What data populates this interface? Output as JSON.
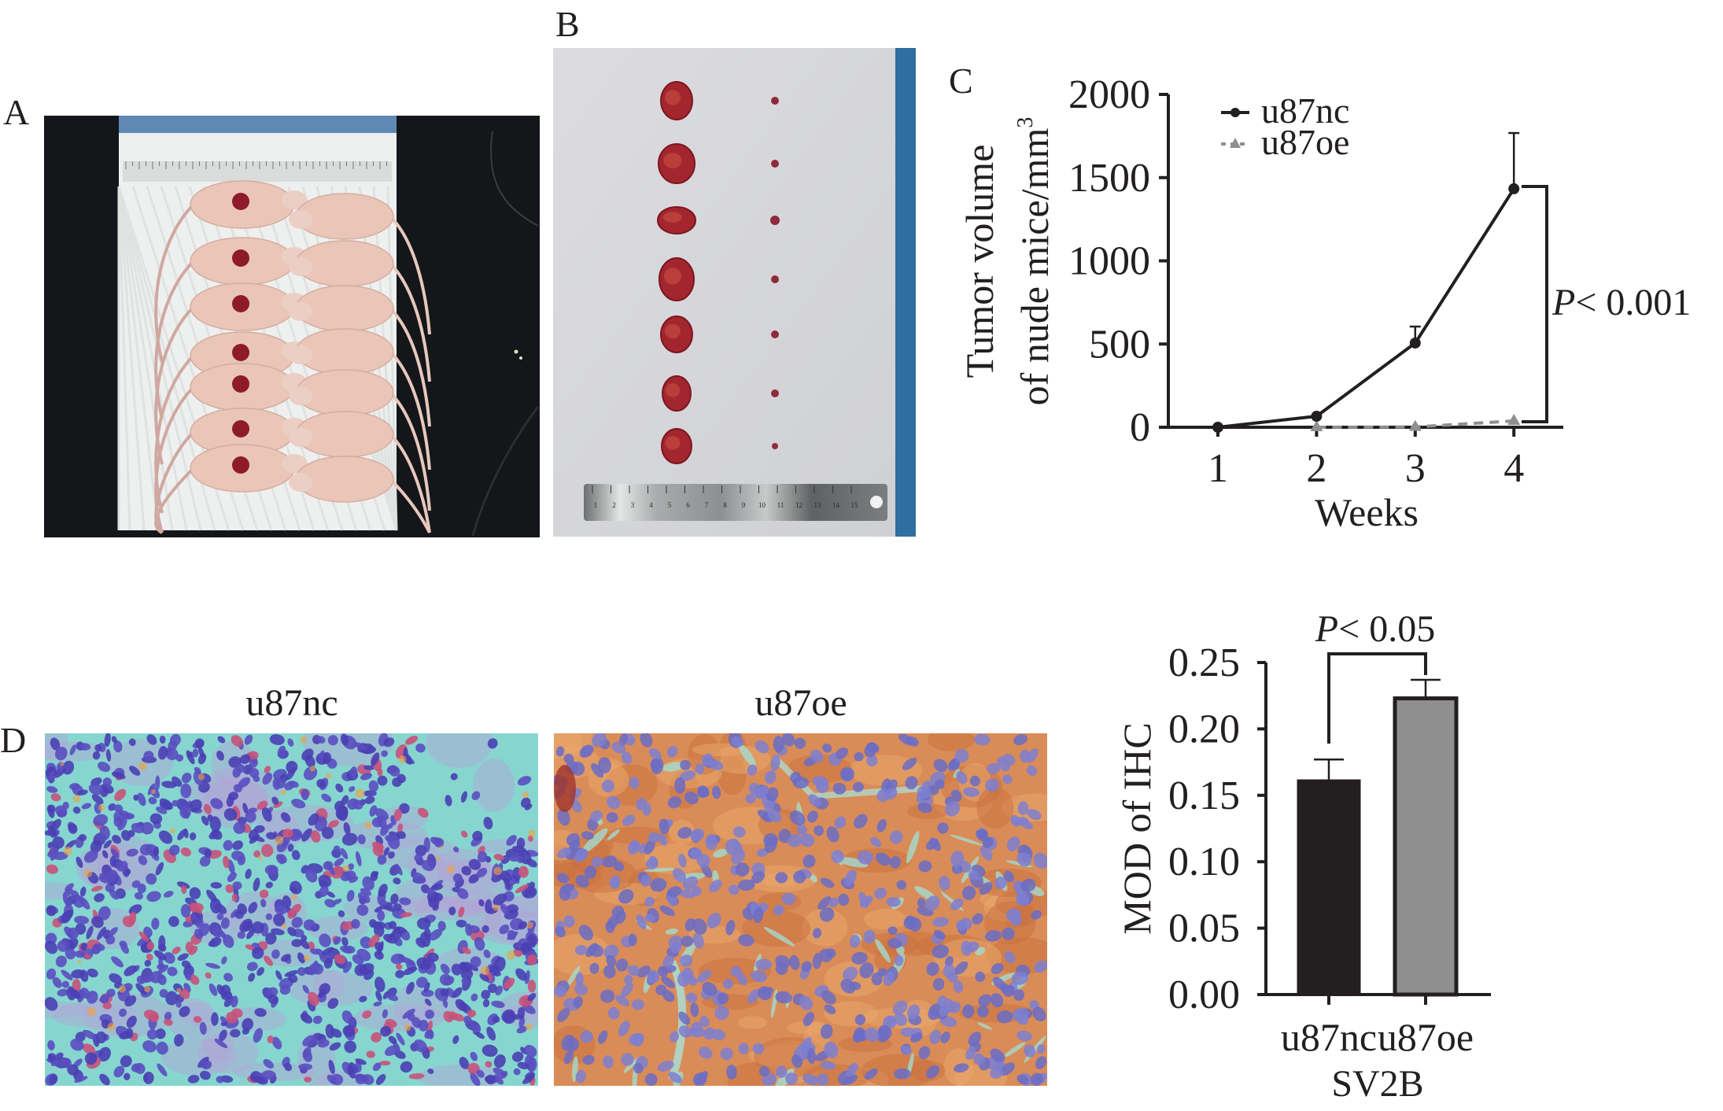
{
  "figure": {
    "panel_labels": {
      "a": "A",
      "b": "B",
      "c": "C",
      "d": "D"
    },
    "panel_a": {
      "description": "nude mice with xenograft tumors",
      "groups": [
        "u87nc",
        "u87oe"
      ],
      "mice_per_group": 7
    },
    "panel_b": {
      "description": "excised tumors",
      "tumors_per_group": 7,
      "ruler_marks": [
        "1",
        "2",
        "3",
        "4",
        "5",
        "6",
        "7",
        "8",
        "9",
        "10",
        "11",
        "12",
        "13",
        "14",
        "15"
      ]
    },
    "panel_d": {
      "images": [
        {
          "title": "u87nc"
        },
        {
          "title": "u87oe"
        }
      ]
    },
    "colors": {
      "ink": "#231f20",
      "u87nc": "#231f20",
      "u87oe": "#8f8f8f",
      "bar_nc": "#231f20",
      "bar_oe": "#8f8f8f",
      "tumor": "#8e1b2c",
      "mouse": "#e9c6b8"
    }
  },
  "chart_data": [
    {
      "type": "line",
      "panel": "C",
      "title": "",
      "xlabel": "Weeks",
      "ylabel_lines": [
        "Tumor volume",
        "of nude mice/mm"
      ],
      "ylabel_superscript": "3",
      "x": [
        1,
        2,
        3,
        4
      ],
      "x_ticks": [
        "1",
        "2",
        "3",
        "4"
      ],
      "ylim": [
        0,
        2000
      ],
      "y_ticks": [
        "0",
        "500",
        "1000",
        "1500",
        "2000"
      ],
      "y_tick_values": [
        0,
        500,
        1000,
        1500,
        2000
      ],
      "series": [
        {
          "name": "u87nc",
          "marker": "circle",
          "line": "solid",
          "values": [
            0,
            66,
            506,
            1433
          ],
          "error_upper": [
            null,
            null,
            605,
            1768
          ]
        },
        {
          "name": "u87oe",
          "marker": "triangle",
          "line": "dashed",
          "values": [
            0,
            0,
            2,
            38
          ],
          "error_upper": [
            null,
            null,
            null,
            null
          ]
        }
      ],
      "legend": {
        "position": "top-left",
        "entries": [
          "u87nc",
          "u87oe"
        ]
      },
      "annotation": {
        "p_italic": "P",
        "text": "< 0.001",
        "between": [
          "u87nc",
          "u87oe"
        ],
        "at_x": 4
      },
      "grid": false
    },
    {
      "type": "bar",
      "panel": "D",
      "categories": [
        "u87nc",
        "u87oe"
      ],
      "group_label": "SV2B",
      "values": [
        0.162,
        0.223
      ],
      "error_upper": [
        0.177,
        0.237
      ],
      "ylabel": "MOD of IHC",
      "ylim": [
        0,
        0.25
      ],
      "y_ticks": [
        "0.00",
        "0.05",
        "0.10",
        "0.15",
        "0.20",
        "0.25"
      ],
      "y_tick_values": [
        0,
        0.05,
        0.1,
        0.15,
        0.2,
        0.25
      ],
      "annotation": {
        "p_italic": "P",
        "text": "< 0.05"
      },
      "grid": false
    }
  ]
}
